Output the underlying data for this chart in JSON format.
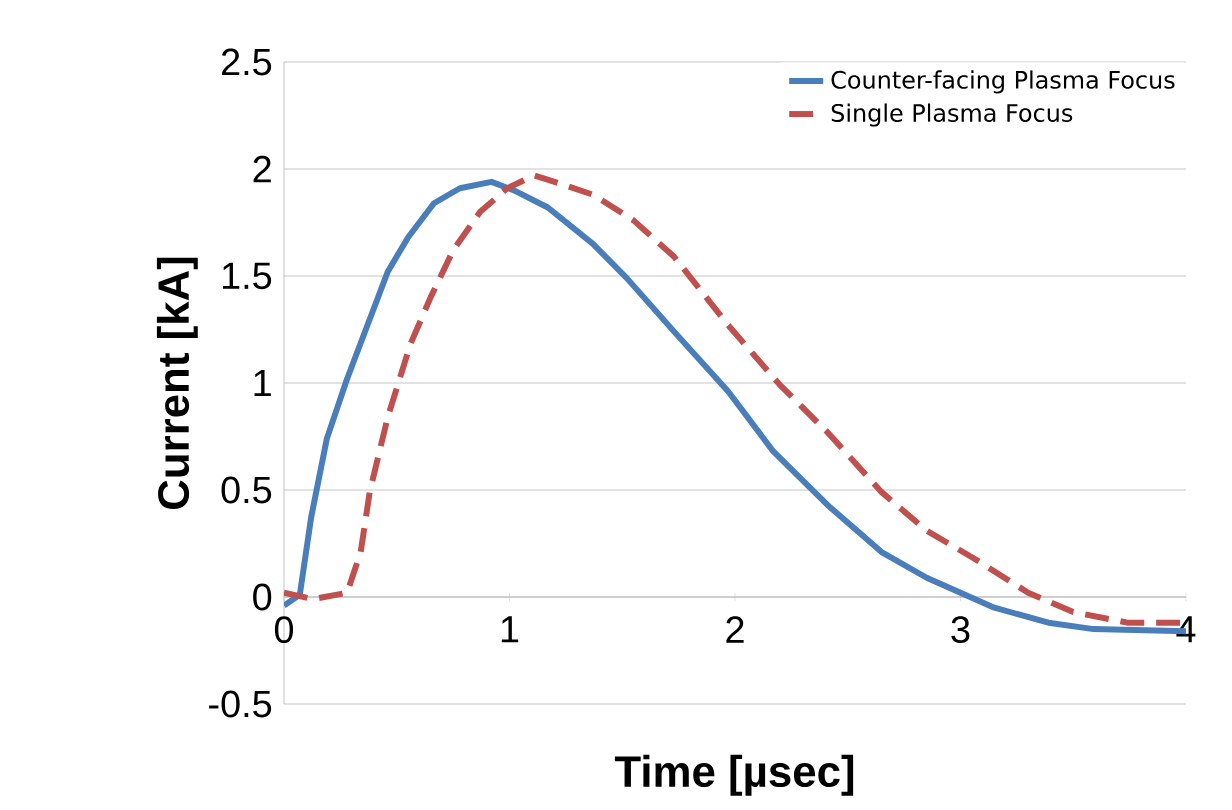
{
  "chart_data": {
    "type": "line",
    "xlabel": "Time [µsec]",
    "ylabel": "Current [kA]",
    "xlim": [
      0,
      4
    ],
    "ylim": [
      -0.5,
      2.5
    ],
    "xticks": [
      0,
      1,
      2,
      3,
      4
    ],
    "yticks": [
      -0.5,
      0,
      0.5,
      1,
      1.5,
      2,
      2.5
    ],
    "grid": "y",
    "legend": "top right",
    "marker": "none",
    "series": [
      {
        "name": "Counter-facing Plasma Focus",
        "color": "#4a7ebb",
        "line_style": "solid",
        "x": [
          0,
          0.07,
          0.12,
          0.19,
          0.28,
          0.37,
          0.46,
          0.55,
          0.665,
          0.78,
          0.92,
          1.02,
          1.17,
          1.37,
          1.52,
          1.73,
          1.97,
          2.17,
          2.41,
          2.65,
          2.85,
          3.0,
          3.15,
          3.39,
          3.59,
          4.0
        ],
        "values": [
          -0.04,
          0.01,
          0.37,
          0.74,
          1.02,
          1.27,
          1.52,
          1.68,
          1.84,
          1.91,
          1.94,
          1.9,
          1.82,
          1.65,
          1.49,
          1.24,
          0.96,
          0.68,
          0.43,
          0.21,
          0.09,
          0.02,
          -0.05,
          -0.12,
          -0.15,
          -0.16
        ]
      },
      {
        "name": "Single Plasma Focus",
        "color": "#c0504d",
        "line_style": "dashed",
        "x": [
          0,
          0.13,
          0.28,
          0.34,
          0.38,
          0.46,
          0.56,
          0.65,
          0.75,
          0.87,
          0.99,
          1.11,
          1.2,
          1.37,
          1.55,
          1.73,
          1.97,
          2.2,
          2.41,
          2.65,
          2.85,
          3.06,
          3.3,
          3.5,
          3.74,
          4.0
        ],
        "values": [
          0.02,
          -0.01,
          0.02,
          0.21,
          0.49,
          0.84,
          1.18,
          1.4,
          1.62,
          1.8,
          1.91,
          1.97,
          1.94,
          1.88,
          1.76,
          1.59,
          1.27,
          0.99,
          0.77,
          0.49,
          0.31,
          0.18,
          0.02,
          -0.07,
          -0.12,
          -0.12
        ]
      }
    ]
  }
}
